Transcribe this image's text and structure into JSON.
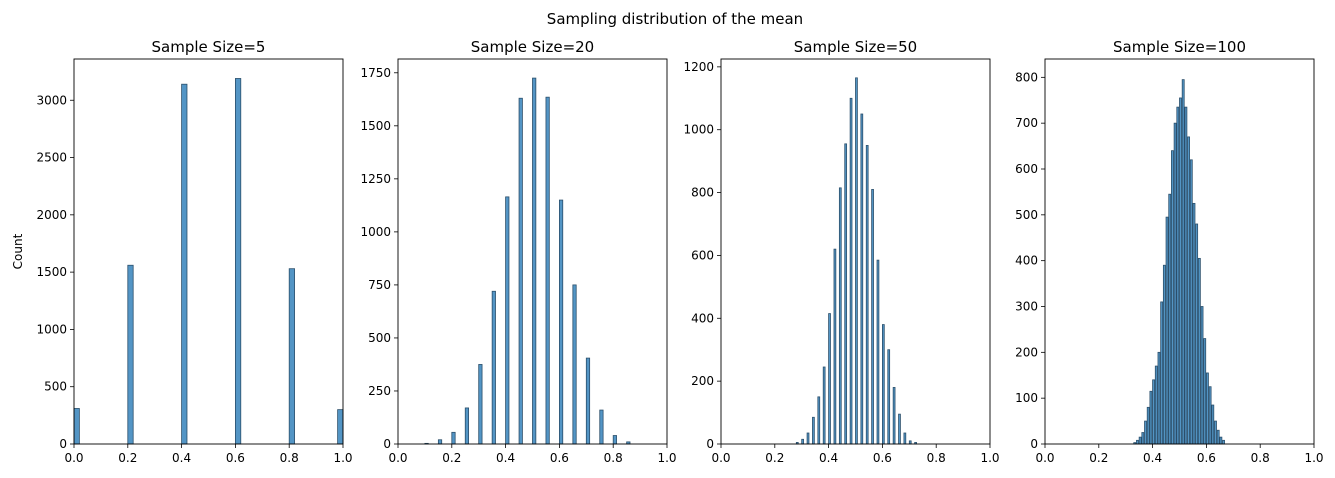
{
  "figure": {
    "suptitle": "Sampling distribution of the mean"
  },
  "chart_data": [
    {
      "type": "bar",
      "title": "Sample Size=5",
      "xlabel": "",
      "ylabel": "Count",
      "xlim": [
        0.0,
        1.0
      ],
      "ylim": [
        0,
        3360
      ],
      "xticks": [
        "0.0",
        "0.2",
        "0.4",
        "0.6",
        "0.8",
        "1.0"
      ],
      "yticks": [
        "0",
        "500",
        "1000",
        "1500",
        "2000",
        "2500",
        "3000"
      ],
      "ytick_values": [
        0,
        500,
        1000,
        1500,
        2000,
        2500,
        3000
      ],
      "bin_width": 0.02,
      "x": [
        0.0,
        0.2,
        0.4,
        0.6,
        0.8,
        0.98
      ],
      "values": [
        310,
        1560,
        3140,
        3190,
        1530,
        300
      ]
    },
    {
      "type": "bar",
      "title": "Sample Size=20",
      "xlabel": "",
      "ylabel": "",
      "xlim": [
        0.0,
        1.0
      ],
      "ylim": [
        0,
        1815
      ],
      "xticks": [
        "0.0",
        "0.2",
        "0.4",
        "0.6",
        "0.8",
        "1.0"
      ],
      "yticks": [
        "0",
        "250",
        "500",
        "750",
        "1000",
        "1250",
        "1500",
        "1750"
      ],
      "ytick_values": [
        0,
        250,
        500,
        750,
        1000,
        1250,
        1500,
        1750
      ],
      "bin_width": 0.0125,
      "x": [
        0.1,
        0.15,
        0.2,
        0.25,
        0.3,
        0.35,
        0.4,
        0.45,
        0.5,
        0.55,
        0.6,
        0.65,
        0.7,
        0.75,
        0.8,
        0.85
      ],
      "values": [
        3,
        20,
        55,
        170,
        375,
        720,
        1165,
        1630,
        1725,
        1635,
        1150,
        750,
        405,
        160,
        40,
        10
      ]
    },
    {
      "type": "bar",
      "title": "Sample Size=50",
      "xlabel": "",
      "ylabel": "",
      "xlim": [
        0.0,
        1.0
      ],
      "ylim": [
        0,
        1225
      ],
      "xticks": [
        "0.0",
        "0.2",
        "0.4",
        "0.6",
        "0.8",
        "1.0"
      ],
      "yticks": [
        "0",
        "200",
        "400",
        "600",
        "800",
        "1000",
        "1200"
      ],
      "ytick_values": [
        0,
        200,
        400,
        600,
        800,
        1000,
        1200
      ],
      "bin_width": 0.007,
      "x": [
        0.28,
        0.3,
        0.32,
        0.34,
        0.36,
        0.38,
        0.4,
        0.42,
        0.44,
        0.46,
        0.48,
        0.5,
        0.52,
        0.54,
        0.56,
        0.58,
        0.6,
        0.62,
        0.64,
        0.66,
        0.68,
        0.7,
        0.72
      ],
      "values": [
        5,
        15,
        35,
        85,
        150,
        245,
        415,
        620,
        815,
        955,
        1100,
        1165,
        1050,
        950,
        810,
        585,
        380,
        300,
        180,
        95,
        35,
        10,
        5
      ]
    },
    {
      "type": "bar",
      "title": "Sample Size=100",
      "xlabel": "",
      "ylabel": "",
      "xlim": [
        0.0,
        1.0
      ],
      "ylim": [
        0,
        840
      ],
      "xticks": [
        "0.0",
        "0.2",
        "0.4",
        "0.6",
        "0.8",
        "1.0"
      ],
      "yticks": [
        "0",
        "100",
        "200",
        "300",
        "400",
        "500",
        "600",
        "700",
        "800"
      ],
      "ytick_values": [
        0,
        100,
        200,
        300,
        400,
        500,
        600,
        700,
        800
      ],
      "bin_width": 0.0075,
      "x": [
        0.33,
        0.34,
        0.35,
        0.36,
        0.37,
        0.38,
        0.39,
        0.4,
        0.41,
        0.42,
        0.43,
        0.44,
        0.45,
        0.46,
        0.47,
        0.48,
        0.49,
        0.5,
        0.51,
        0.52,
        0.53,
        0.54,
        0.55,
        0.56,
        0.57,
        0.58,
        0.59,
        0.6,
        0.61,
        0.62,
        0.63,
        0.64,
        0.65,
        0.66
      ],
      "values": [
        3,
        8,
        15,
        25,
        50,
        80,
        115,
        140,
        170,
        200,
        310,
        390,
        495,
        545,
        640,
        700,
        735,
        755,
        795,
        735,
        670,
        620,
        525,
        480,
        405,
        300,
        230,
        155,
        125,
        85,
        50,
        30,
        15,
        8
      ]
    }
  ]
}
